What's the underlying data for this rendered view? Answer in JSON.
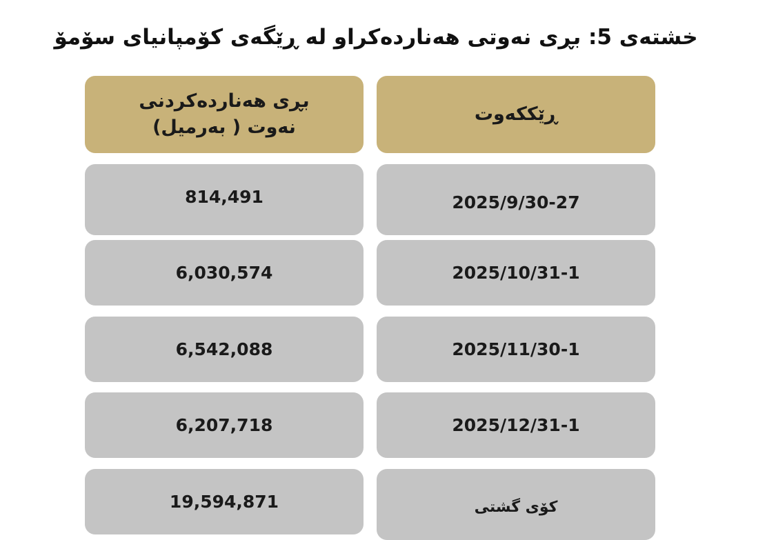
{
  "title": "خشتەی 5: بڕی نەوتی هەناردەکراو لە ڕێگەی کۆمپانیای سۆمۆ",
  "table": {
    "headers": {
      "amount": "بڕی هەناردەکردنی نەوت ( بەرمیل)",
      "date": "ڕێککەوت"
    },
    "rows": [
      {
        "date": "2025/9/30-27",
        "amount": "814,491"
      },
      {
        "date": "2025/10/31-1",
        "amount": "6,030,574"
      },
      {
        "date": "2025/11/30-1",
        "amount": "6,542,088"
      },
      {
        "date": "2025/12/31-1",
        "amount": "6,207,718"
      },
      {
        "date": "کۆی گشتی",
        "amount": "19,594,871"
      }
    ]
  },
  "colors": {
    "header": "#c8b279",
    "row": "#c4c4c4"
  }
}
